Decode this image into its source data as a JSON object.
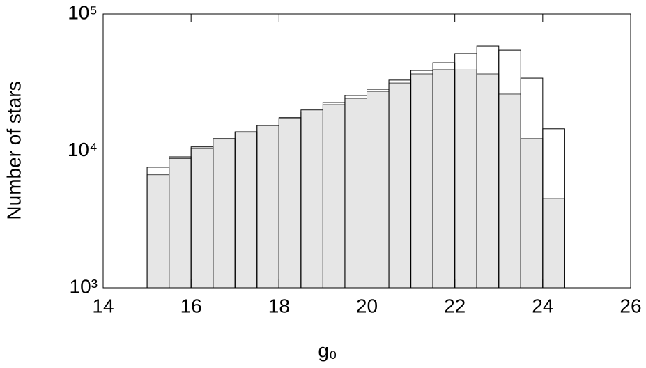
{
  "chart_data": {
    "type": "histogram",
    "xlabel": "g₀",
    "ylabel": "Number of stars",
    "bins": [
      15,
      15.5,
      16,
      16.5,
      17,
      17.5,
      18,
      18.5,
      19,
      19.5,
      20,
      20.5,
      21,
      21.5,
      22,
      22.5,
      23,
      23.5,
      24,
      24.5
    ],
    "series": [
      {
        "color": "#000000",
        "filled": false,
        "values": [
          7600,
          9050,
          10700,
          12300,
          13800,
          15400,
          17500,
          19900,
          22600,
          25400,
          28200,
          32900,
          38700,
          44000,
          51300,
          58300,
          54300,
          34000,
          14500
        ]
      },
      {
        "color": "#e6e6e6",
        "edge_color": "#444444",
        "filled": true,
        "values": [
          6700,
          8800,
          10400,
          12200,
          13700,
          15300,
          17200,
          19300,
          21800,
          24200,
          27200,
          31300,
          36500,
          39200,
          39000,
          36500,
          26000,
          12300,
          4480
        ]
      }
    ],
    "xlim": [
      14,
      26
    ],
    "xticks": [
      14,
      16,
      18,
      20,
      22,
      24,
      26
    ],
    "ylim": [
      1000,
      100000
    ],
    "ylog": true,
    "yticks": [
      {
        "value": 1000,
        "label": "10³"
      },
      {
        "value": 10000,
        "label": "10⁴"
      },
      {
        "value": 100000,
        "label": "10⁵"
      }
    ]
  }
}
